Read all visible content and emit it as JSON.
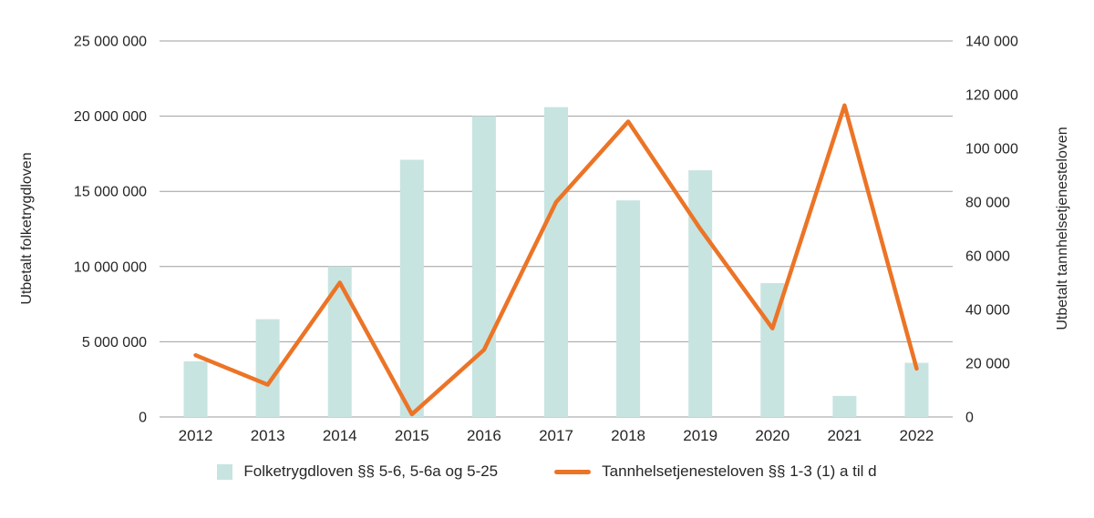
{
  "colors": {
    "bar": "#c7e4e1",
    "line": "#ec7426",
    "grid": "#9e9e9e",
    "text": "#262626"
  },
  "chart_data": {
    "type": "combo-bar-line",
    "categories": [
      "2012",
      "2013",
      "2014",
      "2015",
      "2016",
      "2017",
      "2018",
      "2019",
      "2020",
      "2021",
      "2022"
    ],
    "series": [
      {
        "name": "Folketrygdloven §§ 5-6, 5-6a og 5-25",
        "type": "bar",
        "axis": "left",
        "color": "#c7e4e1",
        "values": [
          3700000,
          6500000,
          10000000,
          17100000,
          20000000,
          20600000,
          14400000,
          16400000,
          8900000,
          1400000,
          3600000
        ]
      },
      {
        "name": "Tannhelsetjenesteloven §§ 1-3 (1) a til d",
        "type": "line",
        "axis": "right",
        "color": "#ec7426",
        "values": [
          23000,
          12000,
          50000,
          1000,
          25000,
          80000,
          110000,
          70000,
          33000,
          116000,
          18000
        ]
      }
    ],
    "left_axis": {
      "label": "Utbetalt folketrygdloven",
      "min": 0,
      "max": 25000000,
      "tick_step": 5000000,
      "tick_labels": [
        "0",
        "5 000 000",
        "10 000 000",
        "15 000 000",
        "20 000 000",
        "25 000 000"
      ]
    },
    "right_axis": {
      "label": "Utbetalt tannhelsetjenesteloven",
      "min": 0,
      "max": 140000,
      "tick_step": 20000,
      "tick_labels": [
        "0",
        "20 000",
        "40 000",
        "60 000",
        "80 000",
        "100 000",
        "120 000",
        "140 000"
      ]
    },
    "grid": true,
    "legend_position": "bottom"
  }
}
